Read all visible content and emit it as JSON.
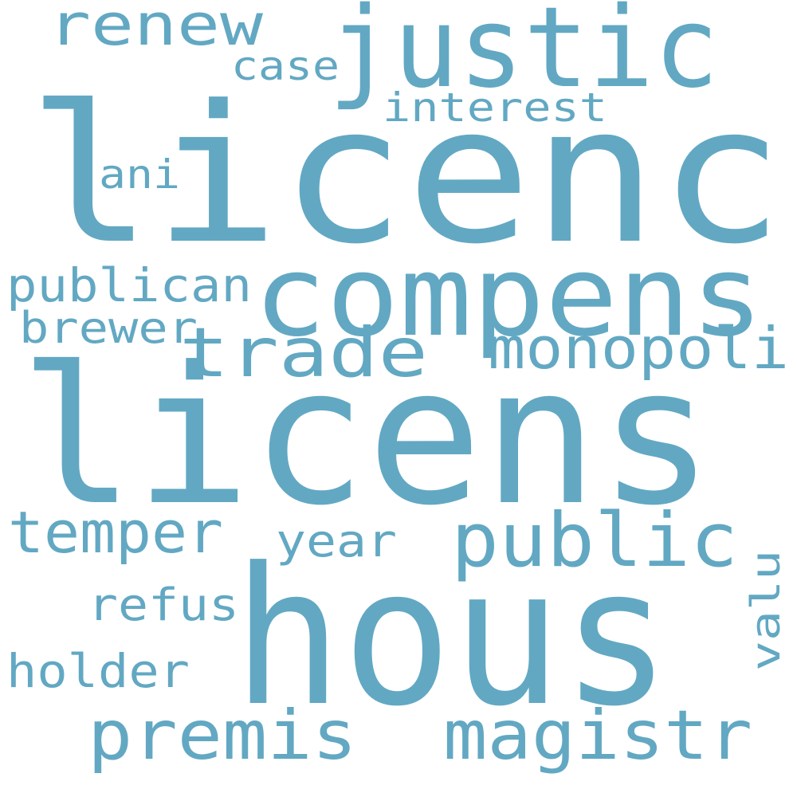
{
  "word_color": "#62a8c3",
  "background_color": "#ffffff",
  "words": [
    {
      "text": "licenc"
    },
    {
      "text": "licens"
    },
    {
      "text": "hous"
    },
    {
      "text": "compens"
    },
    {
      "text": "justic"
    },
    {
      "text": "trade"
    },
    {
      "text": "public"
    },
    {
      "text": "premis"
    },
    {
      "text": "magistr"
    },
    {
      "text": "monopoli"
    },
    {
      "text": "temper"
    },
    {
      "text": "publican"
    },
    {
      "text": "renew"
    },
    {
      "text": "brewer"
    },
    {
      "text": "holder"
    },
    {
      "text": "refus"
    },
    {
      "text": "year"
    },
    {
      "text": "interest"
    },
    {
      "text": "case"
    },
    {
      "text": "ani"
    },
    {
      "text": "valu"
    }
  ]
}
